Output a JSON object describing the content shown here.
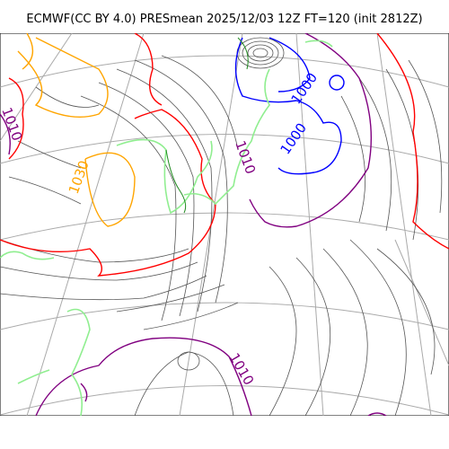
{
  "title": "ECMWF(CC BY 4.0) PRESmean 2025/12/03 12Z FT=120 (init 2812Z)",
  "colors": {
    "isobar": "#555555",
    "isobar_1000": "#0000ff",
    "isobar_1010": "#800080",
    "isobar_1020": "#ff0000",
    "isobar_1030": "#ffa500",
    "coastline": "#90ee90",
    "coastline_inner": "#228b22",
    "graticule": "#aaaaaa"
  },
  "contour_labels": [
    {
      "id": "label-1000-a",
      "text": "1000",
      "color": "#0000ff"
    },
    {
      "id": "label-1000-b",
      "text": "1000",
      "color": "#0000ff"
    },
    {
      "id": "label-1010-a",
      "text": "1010",
      "color": "#800080"
    },
    {
      "id": "label-1010-b",
      "text": "1010",
      "color": "#800080"
    },
    {
      "id": "label-1010-c",
      "text": "1010",
      "color": "#800080"
    },
    {
      "id": "label-1030",
      "text": "1030",
      "color": "#ffa500"
    }
  ]
}
